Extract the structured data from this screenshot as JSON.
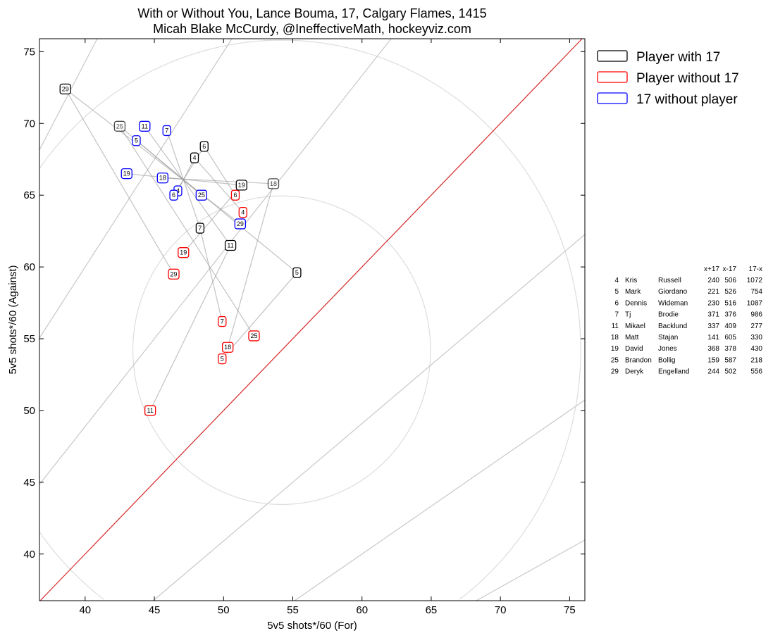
{
  "chart_data": {
    "type": "scatter",
    "title": [
      "With or Without You, Lance Bouma, 17, Calgary Flames, 1415",
      "Micah Blake McCurdy, @IneffectiveMath, hockeyviz.com"
    ],
    "xlabel": "5v5 shots*/60 (For)",
    "ylabel": "5v5 shots*/60 (Against)",
    "xlim": [
      36.7,
      76.1
    ],
    "ylim": [
      36.75,
      75.9
    ],
    "xticks": [
      40,
      45,
      50,
      55,
      60,
      65,
      70,
      75
    ],
    "yticks": [
      40,
      45,
      50,
      55,
      60,
      65,
      70,
      75
    ],
    "grid": false,
    "legend_position": "outside-top-right",
    "colors": {
      "with": "#000000",
      "without": "#ff0000",
      "seventeen_without": "#0000ff",
      "diagonal": "#d62728",
      "guide": "#c8c8c8",
      "circle": "#dddddd"
    },
    "series": [
      {
        "name": "Player with 17",
        "key": "with"
      },
      {
        "name": "Player without 17",
        "key": "without"
      },
      {
        "name": "17 without player",
        "key": "seventeen_without"
      }
    ],
    "ratio_lines": [
      0.35,
      0.4,
      0.45,
      0.55,
      0.6,
      0.65
    ],
    "even_line": 0.5,
    "circles": {
      "center": [
        54.2,
        54.2
      ],
      "radii": [
        10.75,
        21.6
      ]
    },
    "players": [
      {
        "num": "4",
        "first": "Kris",
        "last": "Russell",
        "with_toi": "240",
        "without_toi": "506",
        "seventeen_without_toi": "1072",
        "with": [
          47.9,
          67.6
        ],
        "without": [
          51.4,
          63.8
        ],
        "seventeen_without": [
          46.7,
          65.3
        ],
        "faded": false
      },
      {
        "num": "5",
        "first": "Mark",
        "last": "Giordano",
        "with_toi": "221",
        "without_toi": "526",
        "seventeen_without_toi": "754",
        "with": [
          55.3,
          59.6
        ],
        "without": [
          49.9,
          53.6
        ],
        "seventeen_without": [
          43.7,
          68.8
        ],
        "faded": false
      },
      {
        "num": "6",
        "first": "Dennis",
        "last": "Wideman",
        "with_toi": "230",
        "without_toi": "516",
        "seventeen_without_toi": "1087",
        "with": [
          48.6,
          68.4
        ],
        "without": [
          50.85,
          65.0
        ],
        "seventeen_without": [
          46.4,
          65.0
        ],
        "faded": false
      },
      {
        "num": "7",
        "first": "Tj",
        "last": "Brodie",
        "with_toi": "371",
        "without_toi": "376",
        "seventeen_without_toi": "986",
        "with": [
          48.3,
          62.7
        ],
        "without": [
          49.9,
          56.2
        ],
        "seventeen_without": [
          45.9,
          69.5
        ],
        "faded": false
      },
      {
        "num": "11",
        "first": "Mikael",
        "last": "Backlund",
        "with_toi": "337",
        "without_toi": "409",
        "seventeen_without_toi": "277",
        "with": [
          50.5,
          61.5
        ],
        "without": [
          44.7,
          50.0
        ],
        "seventeen_without": [
          44.3,
          69.8
        ],
        "faded": false
      },
      {
        "num": "18",
        "first": "Matt",
        "last": "Stajan",
        "with_toi": "141",
        "without_toi": "605",
        "seventeen_without_toi": "330",
        "with": [
          53.6,
          65.8
        ],
        "without": [
          50.3,
          54.4
        ],
        "seventeen_without": [
          45.6,
          66.2
        ],
        "faded": true
      },
      {
        "num": "19",
        "first": "David",
        "last": "Jones",
        "with_toi": "368",
        "without_toi": "378",
        "seventeen_without_toi": "430",
        "with": [
          51.3,
          65.7
        ],
        "without": [
          47.1,
          61.0
        ],
        "seventeen_without": [
          43.0,
          66.5
        ],
        "faded": false
      },
      {
        "num": "25",
        "first": "Brandon",
        "last": "Bollig",
        "with_toi": "159",
        "without_toi": "587",
        "seventeen_without_toi": "218",
        "with": [
          42.5,
          69.8
        ],
        "without": [
          52.2,
          55.2
        ],
        "seventeen_without": [
          48.4,
          65.0
        ],
        "faded": true
      },
      {
        "num": "29",
        "first": "Deryk",
        "last": "Engelland",
        "with_toi": "244",
        "without_toi": "502",
        "seventeen_without_toi": "556",
        "with": [
          38.57,
          72.4
        ],
        "without": [
          46.4,
          59.5
        ],
        "seventeen_without": [
          51.2,
          63.0
        ],
        "faded": false
      }
    ],
    "table_headers": [
      "x+17",
      "x-17",
      "17-x"
    ]
  }
}
